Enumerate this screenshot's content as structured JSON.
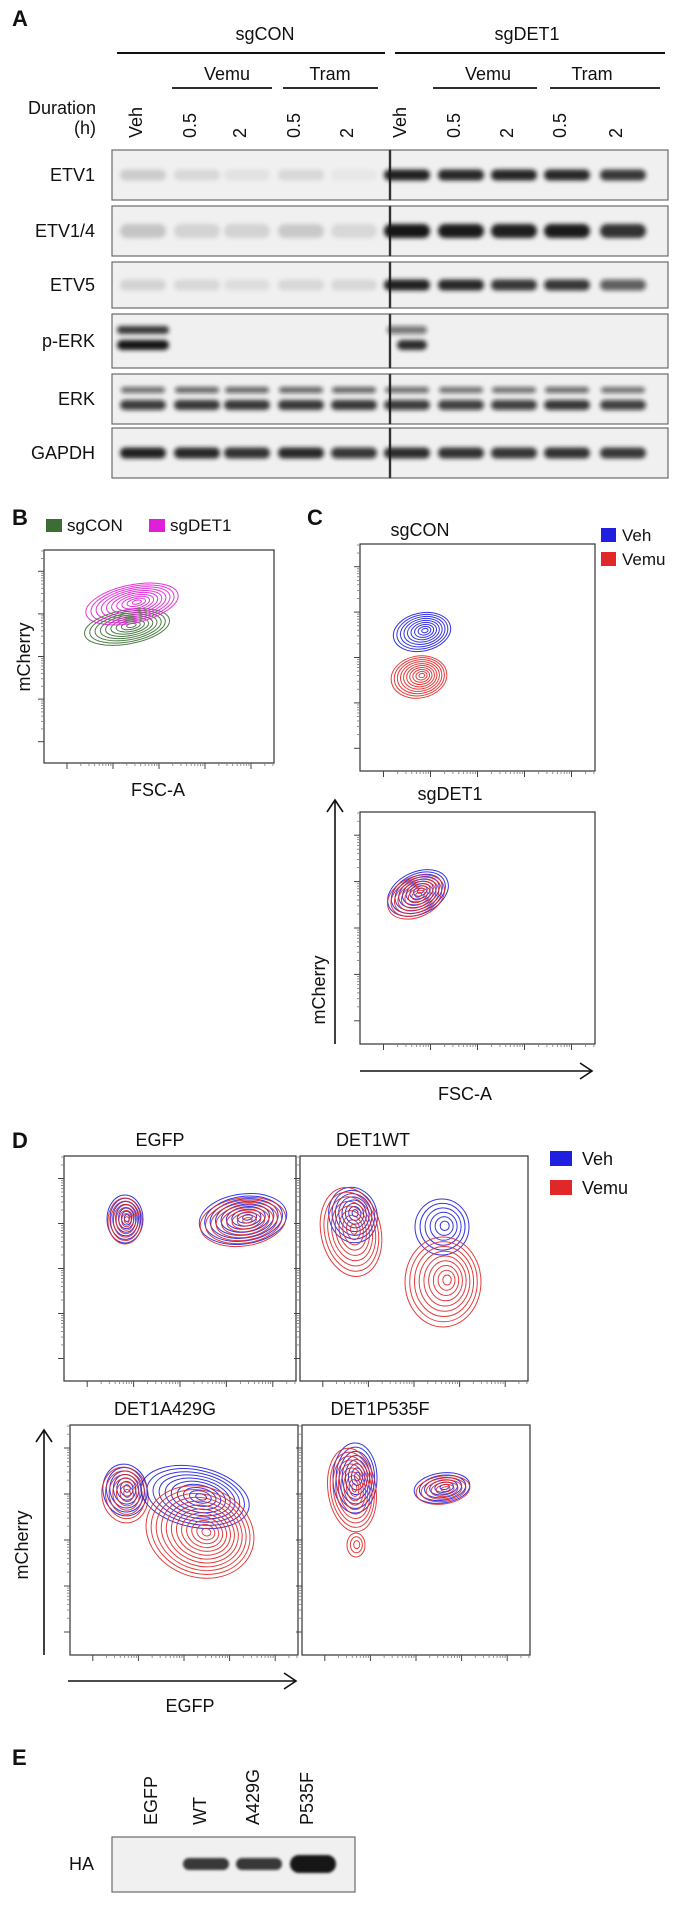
{
  "colors": {
    "sgCON": "#3c6e34",
    "sgDET1": "#e020d8",
    "Veh": "#1f1fe0",
    "Vemu": "#e02828",
    "band": "#141414"
  },
  "panelA": {
    "label": "A",
    "groups": [
      "sgCON",
      "sgDET1"
    ],
    "subgroups": [
      "Vemu",
      "Tram",
      "Vemu",
      "Tram"
    ],
    "duration_label": [
      "Duration",
      "(h)"
    ],
    "lanes": [
      "Veh",
      "0.5",
      "2",
      "0.5",
      "2",
      "Veh",
      "0.5",
      "2",
      "0.5",
      "2"
    ],
    "rows": [
      "ETV1",
      "ETV1/4",
      "ETV5",
      "p-ERK",
      "ERK",
      "GAPDH"
    ]
  },
  "panelB": {
    "label": "B",
    "legend": [
      "sgCON",
      "sgDET1"
    ],
    "xlabel": "FSC-A",
    "ylabel": "mCherry"
  },
  "panelC": {
    "label": "C",
    "plots": [
      "sgCON",
      "sgDET1"
    ],
    "legend": [
      "Veh",
      "Vemu"
    ],
    "xlabel": "FSC-A",
    "ylabel": "mCherry"
  },
  "panelD": {
    "label": "D",
    "plots": [
      "EGFP",
      "DET1WT",
      "DET1A429G",
      "DET1P535F"
    ],
    "legend": [
      "Veh",
      "Vemu"
    ],
    "xlabel": "EGFP",
    "ylabel": "mCherry"
  },
  "panelE": {
    "label": "E",
    "lanes": [
      "EGFP",
      "WT",
      "A429G",
      "P535F"
    ],
    "row": "HA"
  }
}
